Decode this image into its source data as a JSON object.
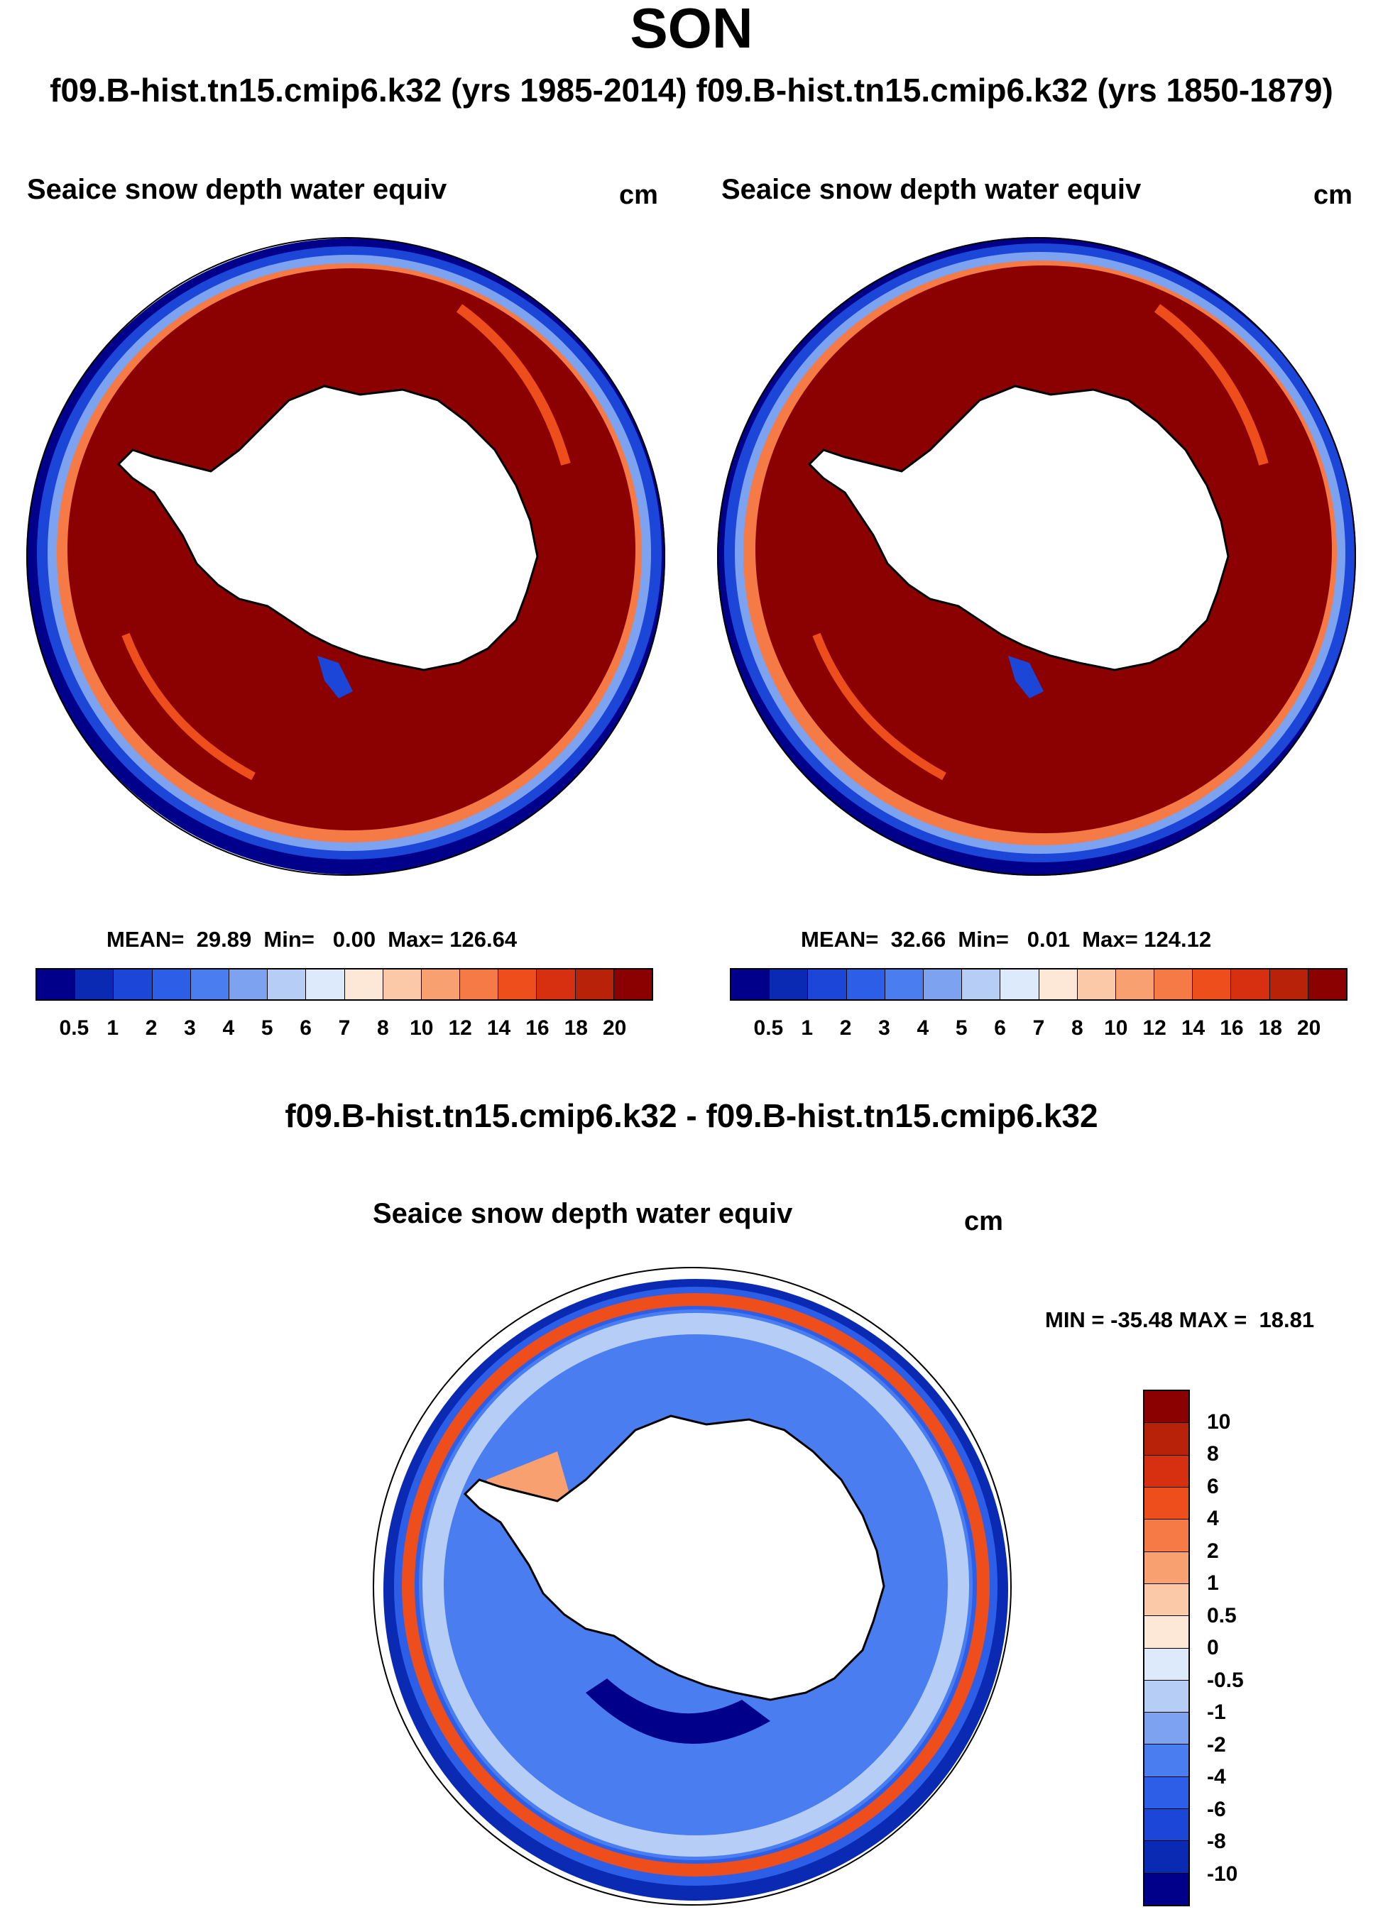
{
  "season": "SON",
  "cases_line": "f09.B-hist.tn15.cmip6.k32 (yrs 1985-2014) f09.B-hist.tn15.cmip6.k32 (yrs 1850-1879)",
  "panels": [
    {
      "field": "Seaice snow depth water equiv",
      "unit": "cm",
      "stats": "MEAN=  29.89  Min=   0.00  Max= 126.64"
    },
    {
      "field": "Seaice snow depth water equiv",
      "unit": "cm",
      "stats": "MEAN=  32.66  Min=   0.01  Max= 124.12"
    }
  ],
  "colorbar_abs": {
    "labels": [
      "0.5",
      "1",
      "2",
      "3",
      "4",
      "5",
      "6",
      "7",
      "8",
      "10",
      "12",
      "14",
      "16",
      "18",
      "20"
    ],
    "colors": [
      "#00008b",
      "#0a2ab4",
      "#1c46d8",
      "#2c5ee8",
      "#4a7ef0",
      "#7da2f0",
      "#b6cdf5",
      "#dceafb",
      "#fde8d8",
      "#fbc9a8",
      "#f8a070",
      "#f57a45",
      "#ee4e1c",
      "#d63010",
      "#b82208",
      "#8b0000"
    ]
  },
  "diff": {
    "title": "f09.B-hist.tn15.cmip6.k32 - f09.B-hist.tn15.cmip6.k32",
    "field": "Seaice snow depth water equiv",
    "unit": "cm",
    "stats": "MIN = -35.48 MAX =  18.81",
    "colorbar": {
      "labels": [
        "10",
        "8",
        "6",
        "4",
        "2",
        "1",
        "0.5",
        "0",
        "-0.5",
        "-1",
        "-2",
        "-4",
        "-6",
        "-8",
        "-10"
      ],
      "colors": [
        "#8b0000",
        "#b82208",
        "#d63010",
        "#ee4e1c",
        "#f57a45",
        "#f8a070",
        "#fbc9a8",
        "#fde8d8",
        "#dceafb",
        "#b6cdf5",
        "#7da2f0",
        "#4a7ef0",
        "#2c5ee8",
        "#1c46d8",
        "#0a2ab4",
        "#00008b"
      ]
    }
  }
}
